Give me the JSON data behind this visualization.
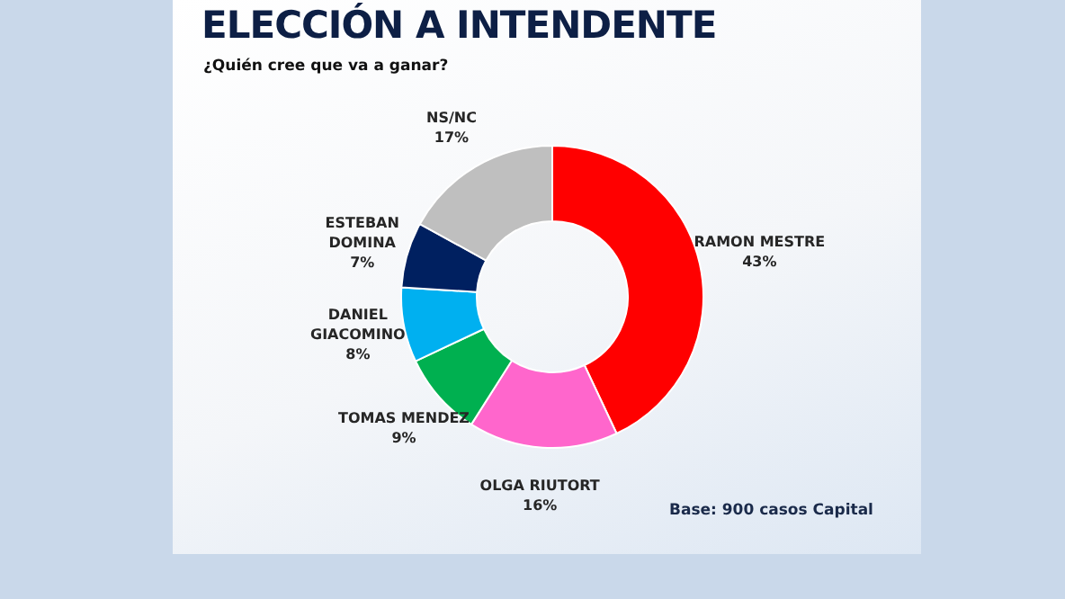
{
  "chart_data": {
    "type": "donut",
    "title": "ELECCIÓN A INTENDENTE",
    "subtitle": "¿Quién cree que va a ganar?",
    "categories": [
      "RAMON MESTRE",
      "OLGA RIUTORT",
      "TOMAS MENDEZ",
      "DANIEL GIACOMINO",
      "ESTEBAN DOMINA",
      "NS/NC"
    ],
    "values": [
      43,
      16,
      9,
      8,
      7,
      17
    ],
    "colors": [
      "#ff0000",
      "#ff66cc",
      "#00b050",
      "#00b0f0",
      "#002060",
      "#bfbfbf"
    ],
    "value_labels": [
      "43%",
      "16%",
      "9%",
      "8%",
      "7%",
      "17%"
    ],
    "annotations": [
      "Base: 900 casos Capital"
    ]
  }
}
